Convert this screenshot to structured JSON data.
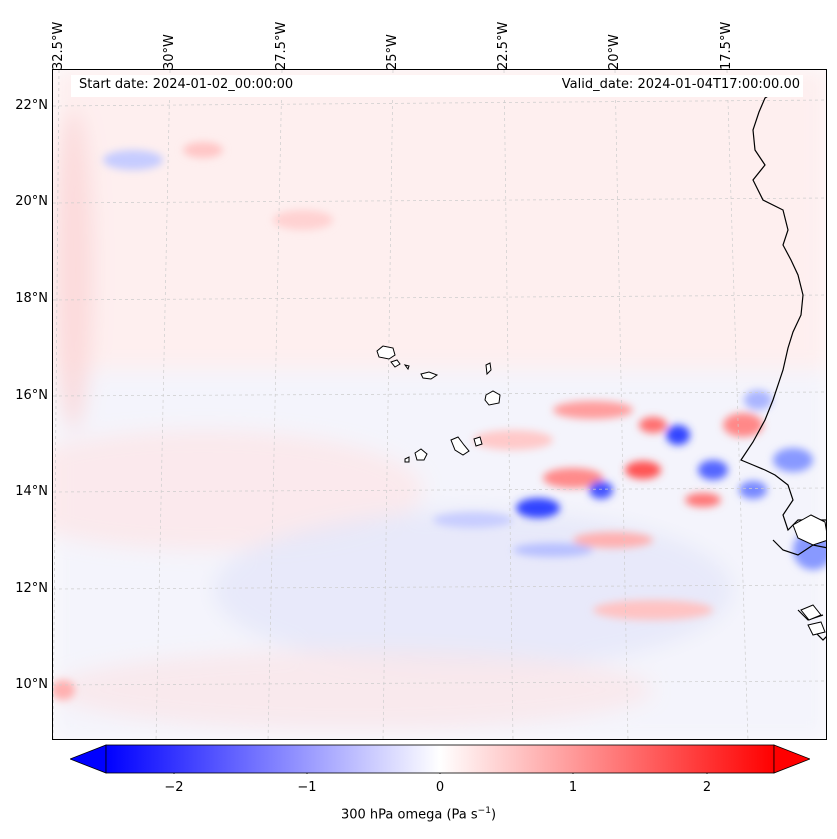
{
  "map": {
    "header": {
      "start": "Start date: 2024-01-02_00:00:00",
      "valid": "Valid_date: 2024-01-04T17:00:00.00"
    },
    "lon_labels": [
      "32.5°W",
      "30°W",
      "27.5°W",
      "25°W",
      "22.5°W",
      "20°W",
      "17.5°W"
    ],
    "lat_labels": [
      "22°N",
      "20°N",
      "18°N",
      "16°N",
      "14°N",
      "12°N",
      "10°N"
    ],
    "colorbar": {
      "ticks": [
        "−2",
        "−1",
        "0",
        "1",
        "2"
      ],
      "label_prefix": "300 hPa omega (Pa s",
      "label_exp": "−1",
      "label_suffix": ")",
      "min": -2.7,
      "max": 2.7,
      "neg_color": "#0000ff",
      "pos_color": "#ff0000"
    }
  }
}
